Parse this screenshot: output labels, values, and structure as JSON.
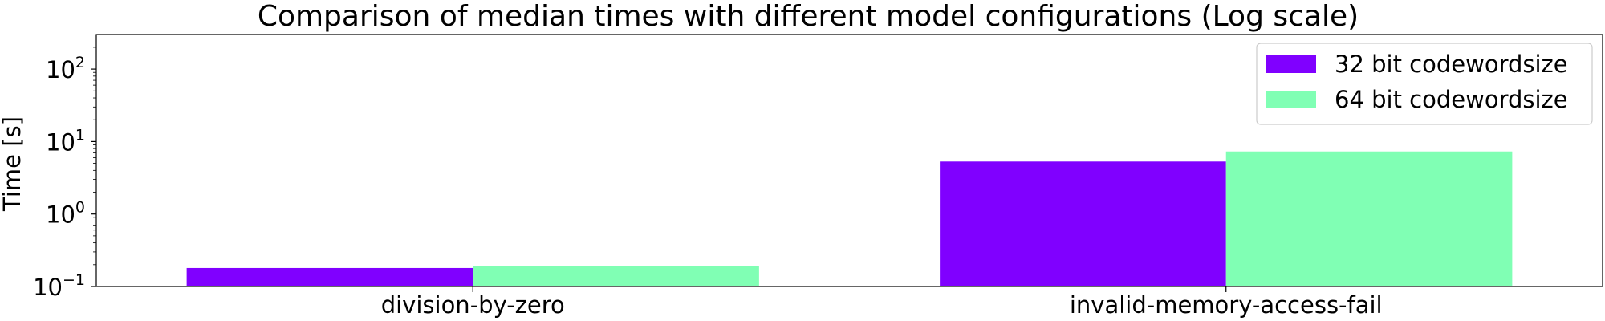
{
  "chart_data": {
    "type": "bar",
    "title": "Comparison of median times with different model configurations (Log scale)",
    "xlabel": "",
    "ylabel": "Time [s]",
    "yscale": "log",
    "ylim": [
      0.1,
      300
    ],
    "yticks": [
      {
        "base": "10",
        "exp": "−1",
        "value": 0.1
      },
      {
        "base": "10",
        "exp": "0",
        "value": 1
      },
      {
        "base": "10",
        "exp": "1",
        "value": 10
      },
      {
        "base": "10",
        "exp": "2",
        "value": 100
      }
    ],
    "categories": [
      "division-by-zero",
      "invalid-memory-access-fail"
    ],
    "series": [
      {
        "name": "32 bit codewordsize",
        "color": "#8000ff",
        "values": [
          0.18,
          5.3
        ]
      },
      {
        "name": "64 bit codewordsize",
        "color": "#80ffb4",
        "values": [
          0.19,
          7.3
        ]
      }
    ],
    "legend_position": "top-right",
    "grid": false
  }
}
